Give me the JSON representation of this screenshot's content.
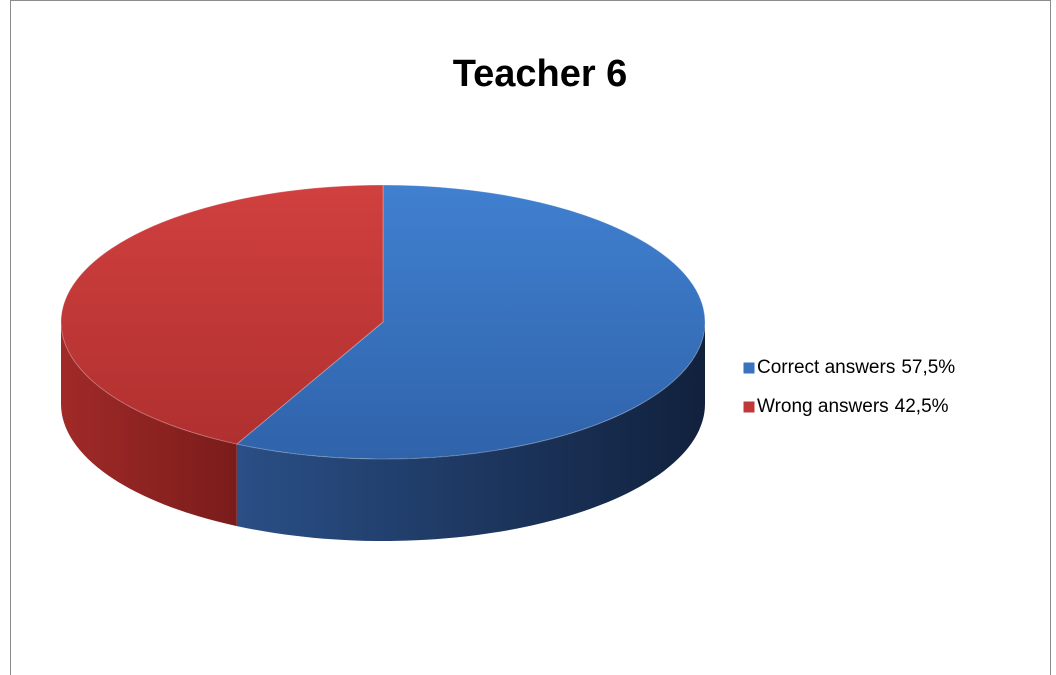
{
  "chart_data": {
    "type": "pie",
    "title": "Teacher 6",
    "categories": [
      "Correct answers",
      "Wrong answers"
    ],
    "values": [
      57.5,
      42.5
    ],
    "value_labels": [
      "57,5%",
      "42,5%"
    ],
    "colors": [
      "#3a72c0",
      "#c0393a"
    ],
    "legend": "right"
  }
}
